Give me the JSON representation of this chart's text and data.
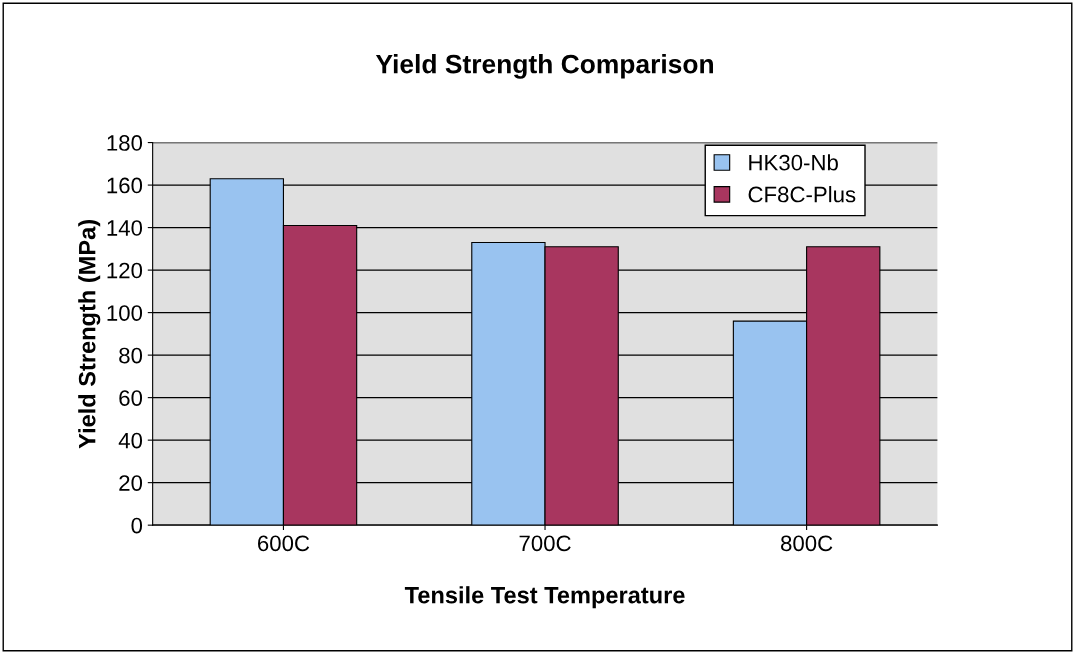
{
  "chart_data": {
    "type": "bar",
    "title": "Yield Strength Comparison",
    "xlabel": "Tensile Test Temperature",
    "ylabel": "Yield Strength (MPa)",
    "categories": [
      "600C",
      "700C",
      "800C"
    ],
    "series": [
      {
        "name": "HK30-Nb",
        "color": "#99c3f0",
        "values": [
          163,
          133,
          96
        ]
      },
      {
        "name": "CF8C-Plus",
        "color": "#a8365f",
        "values": [
          141,
          131,
          131
        ]
      }
    ],
    "ylim": [
      0,
      180
    ],
    "yticks": [
      0,
      20,
      40,
      60,
      80,
      100,
      120,
      140,
      160,
      180
    ],
    "grid": "y",
    "legend": "top right"
  }
}
